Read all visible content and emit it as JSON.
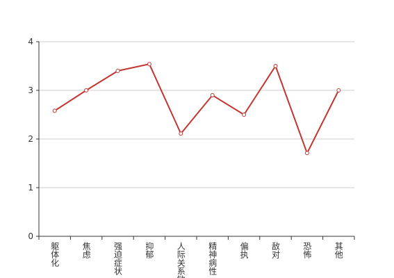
{
  "chart_data": {
    "type": "line",
    "categories": [
      "躯体化",
      "焦虑",
      "强迫症状",
      "抑郁",
      "人际关系敏感",
      "精神病性",
      "偏执",
      "敌对",
      "恐怖",
      "其他"
    ],
    "values": [
      2.58,
      3.0,
      3.4,
      3.54,
      2.11,
      2.9,
      2.5,
      3.5,
      1.71,
      3.0
    ],
    "color": "#c23531",
    "ylim": [
      0,
      4
    ],
    "yticks": [
      0,
      1,
      2,
      3,
      4
    ],
    "grid": true
  }
}
